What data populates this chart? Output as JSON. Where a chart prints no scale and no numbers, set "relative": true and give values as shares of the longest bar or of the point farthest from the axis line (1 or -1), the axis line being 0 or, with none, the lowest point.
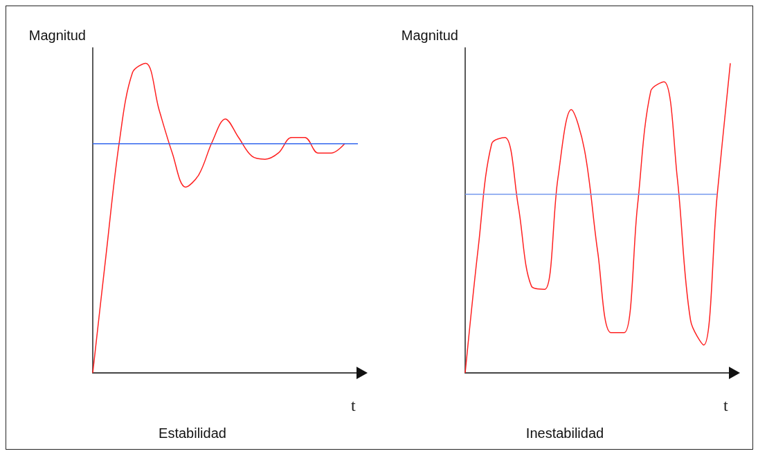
{
  "chart_data": [
    {
      "type": "line",
      "title": "Estabilidad",
      "xlabel": "t",
      "ylabel": "Magnitud",
      "relative": true,
      "grid": false,
      "marker": "none",
      "categories": [
        null,
        null,
        null,
        null,
        null,
        null,
        null,
        null,
        null,
        null,
        null,
        null,
        null,
        null,
        null,
        null,
        null,
        null,
        null,
        null,
        null
      ],
      "series": [
        {
          "color": "#ff2020",
          "values": [
            0,
            0.38,
            0.745,
            0.97,
            1,
            0.85,
            0.71,
            0.6,
            0.64,
            0.745,
            0.82,
            0.76,
            0.7,
            0.69,
            0.71,
            0.76,
            0.76,
            0.71,
            0.71,
            0.74,
            null
          ]
        },
        {
          "color": "#3366ee",
          "values": [
            0.74,
            0.74,
            0.74,
            0.74,
            0.74,
            0.74,
            0.74,
            0.74,
            0.74,
            0.74,
            0.74,
            0.74,
            0.74,
            0.74,
            0.74,
            0.74,
            0.74,
            0.74,
            0.74,
            0.74,
            0.74
          ]
        }
      ]
    },
    {
      "type": "line",
      "title": "Inestabilidad",
      "xlabel": "t",
      "ylabel": "Magnitud",
      "relative": true,
      "grid": false,
      "marker": "none",
      "categories": [
        null,
        null,
        null,
        null,
        null,
        null,
        null,
        null,
        null,
        null,
        null,
        null,
        null,
        null,
        null,
        null,
        null,
        null,
        null,
        null,
        null
      ],
      "series": [
        {
          "color": "#ff2020",
          "values": [
            0,
            0.41,
            0.74,
            0.76,
            0.54,
            0.28,
            0.27,
            0.63,
            0.85,
            0.72,
            0.39,
            0.13,
            0.13,
            0.54,
            0.91,
            0.94,
            0.63,
            0.17,
            0.09,
            0.57,
            1
          ]
        },
        {
          "color": "#7799ee",
          "values": [
            0.577,
            0.577,
            0.577,
            0.577,
            0.577,
            0.577,
            0.577,
            0.577,
            0.577,
            0.577,
            0.577,
            0.577,
            0.577,
            0.577,
            0.577,
            0.577,
            0.577,
            0.577,
            0.577,
            0.577,
            null
          ]
        }
      ]
    }
  ]
}
